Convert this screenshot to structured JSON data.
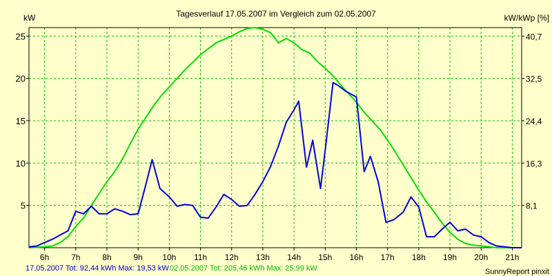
{
  "chart_data": {
    "type": "line",
    "title": "Tagesverlauf 17.05.2007 im Vergleich zum 02.05.2007",
    "ylabel": "kW",
    "y2label": "kW/kWp [%]",
    "xlim": [
      5.5,
      21.3
    ],
    "ylim": [
      0,
      26
    ],
    "x_ticks": [
      6,
      7,
      8,
      9,
      10,
      11,
      12,
      13,
      14,
      15,
      16,
      17,
      18,
      19,
      20,
      21
    ],
    "x_tick_labels": [
      "6h",
      "7h",
      "8h",
      "9h",
      "10h",
      "11h",
      "12h",
      "13h",
      "14h",
      "15h",
      "16h",
      "17h",
      "18h",
      "19h",
      "20h",
      "21h"
    ],
    "y_ticks": [
      5,
      10,
      15,
      20,
      25
    ],
    "y_tick_labels": [
      "5",
      "10",
      "15",
      "20",
      "25"
    ],
    "y2_ticks": [
      5,
      10,
      15,
      20,
      25
    ],
    "y2_tick_labels": [
      "8,1",
      "16,3",
      "24,4",
      "32,5",
      "40,7"
    ],
    "grid": true,
    "grid_color": "#00c000",
    "series": [
      {
        "name": "17.05.2007",
        "color": "#0000dd",
        "x": [
          5.5,
          5.75,
          6.0,
          6.25,
          6.5,
          6.75,
          7.0,
          7.25,
          7.5,
          7.75,
          8.0,
          8.25,
          8.5,
          8.75,
          9.0,
          9.25,
          9.45,
          9.7,
          10.0,
          10.25,
          10.5,
          10.75,
          11.0,
          11.25,
          11.5,
          11.75,
          12.0,
          12.25,
          12.5,
          12.75,
          13.0,
          13.25,
          13.5,
          13.75,
          14.0,
          14.15,
          14.4,
          14.6,
          14.85,
          15.0,
          15.25,
          15.4,
          15.65,
          16.0,
          16.25,
          16.45,
          16.7,
          16.95,
          17.2,
          17.5,
          17.75,
          18.0,
          18.25,
          18.5,
          18.75,
          19.0,
          19.25,
          19.5,
          19.75,
          20.0,
          20.25,
          20.5,
          20.75,
          21.0,
          21.3
        ],
        "values": [
          0.1,
          0.2,
          0.6,
          1.0,
          1.5,
          2.0,
          4.3,
          4.0,
          4.9,
          4.0,
          4.0,
          4.6,
          4.3,
          3.9,
          4.0,
          7.5,
          10.4,
          7.0,
          6.0,
          4.9,
          5.1,
          5.0,
          3.6,
          3.5,
          4.8,
          6.3,
          5.7,
          4.9,
          5.0,
          6.3,
          7.8,
          9.6,
          12.0,
          14.8,
          16.3,
          17.3,
          9.5,
          12.7,
          7.0,
          11.5,
          19.5,
          19.2,
          18.5,
          17.8,
          9.0,
          10.8,
          7.8,
          3.0,
          3.3,
          4.2,
          6.0,
          4.8,
          1.3,
          1.3,
          2.2,
          3.0,
          2.0,
          2.2,
          1.5,
          1.3,
          0.6,
          0.2,
          0.1,
          0.0,
          0.0
        ]
      },
      {
        "name": "02.05.2007",
        "color": "#00dd00",
        "x": [
          5.5,
          6.0,
          6.25,
          6.5,
          6.75,
          7.0,
          7.25,
          7.5,
          7.75,
          8.0,
          8.25,
          8.5,
          8.75,
          9.0,
          9.25,
          9.5,
          9.75,
          10.0,
          10.25,
          10.5,
          10.75,
          11.0,
          11.25,
          11.5,
          11.75,
          12.0,
          12.25,
          12.5,
          12.75,
          13.0,
          13.25,
          13.5,
          13.75,
          14.0,
          14.25,
          14.5,
          14.75,
          15.0,
          15.25,
          15.5,
          15.75,
          16.0,
          16.25,
          16.5,
          16.75,
          17.0,
          17.25,
          17.5,
          17.75,
          18.0,
          18.25,
          18.5,
          18.75,
          19.0,
          19.25,
          19.5,
          19.75,
          20.0,
          20.25,
          20.5,
          20.75,
          21.0,
          21.3
        ],
        "values": [
          0.0,
          0.1,
          0.2,
          0.6,
          1.3,
          2.5,
          3.5,
          5.0,
          6.4,
          7.8,
          9.0,
          10.5,
          12.3,
          14.0,
          15.4,
          16.8,
          18.0,
          19.0,
          20.0,
          21.0,
          21.9,
          22.8,
          23.5,
          24.2,
          24.6,
          25.0,
          25.5,
          25.9,
          26.0,
          25.8,
          25.4,
          24.2,
          24.7,
          24.2,
          23.4,
          23.0,
          22.0,
          21.2,
          20.3,
          19.2,
          18.2,
          17.2,
          16.0,
          15.0,
          14.0,
          12.7,
          11.3,
          9.8,
          8.3,
          6.8,
          5.4,
          4.2,
          2.9,
          1.8,
          1.0,
          0.5,
          0.3,
          0.2,
          0.1,
          0.0,
          0.0,
          0.0,
          0.0
        ]
      }
    ]
  },
  "footer": {
    "series1_summary": "17.05.2007 Tot: 92,44 kWh Max: 19,53 kW",
    "series2_summary": "02.05.2007 Tot: 205,46 kWh Max: 25,99 kW",
    "credit": "SunnyReport pinxit"
  }
}
